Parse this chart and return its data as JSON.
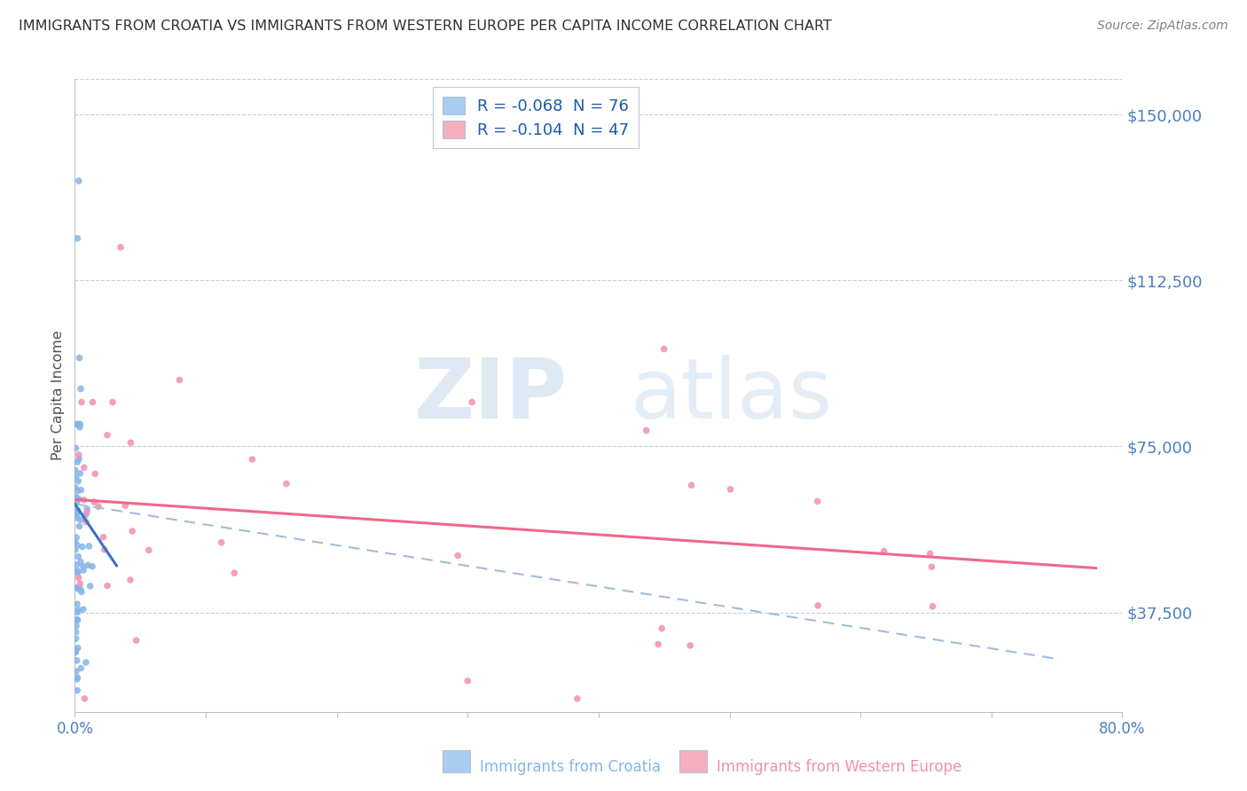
{
  "title": "IMMIGRANTS FROM CROATIA VS IMMIGRANTS FROM WESTERN EUROPE PER CAPITA INCOME CORRELATION CHART",
  "source": "Source: ZipAtlas.com",
  "ylabel": "Per Capita Income",
  "ytick_vals": [
    37500,
    75000,
    112500,
    150000
  ],
  "ytick_labels": [
    "$37,500",
    "$75,000",
    "$112,500",
    "$150,000"
  ],
  "xtick_vals": [
    0,
    10,
    20,
    30,
    40,
    50,
    60,
    70,
    80
  ],
  "xtick_labels": [
    "0.0%",
    "",
    "",
    "",
    "",
    "",
    "",
    "",
    "80.0%"
  ],
  "xmin": 0.0,
  "xmax": 80.0,
  "ymin": 15000,
  "ymax": 158000,
  "watermark_zip": "ZIP",
  "watermark_atlas": "atlas",
  "legend": [
    {
      "label": "R = -0.068  N = 76",
      "color": "#aaccf0"
    },
    {
      "label": "R = -0.104  N = 47",
      "color": "#f5afc0"
    }
  ],
  "legend_label_croatia": "Immigrants from Croatia",
  "legend_label_western": "Immigrants from Western Europe",
  "croatia_color": "#85b5e8",
  "western_color": "#f090b0",
  "croatia_line_color": "#3a70c8",
  "western_line_color": "#f06888",
  "dashed_line_color": "#a0bcd8",
  "croatia_R": -0.068,
  "croatia_N": 76,
  "western_R": -0.104,
  "western_N": 47,
  "background_color": "#ffffff",
  "grid_color": "#c0d0e0",
  "title_color": "#303030",
  "axis_label_color": "#4a7fc0",
  "croatia_line_x": [
    0.0,
    3.2
  ],
  "croatia_line_y": [
    62000,
    48000
  ],
  "western_line_x": [
    0.0,
    78.0
  ],
  "western_line_y": [
    63000,
    47500
  ],
  "dashed_line_x": [
    0.0,
    75.0
  ],
  "dashed_line_y": [
    62000,
    27000
  ]
}
